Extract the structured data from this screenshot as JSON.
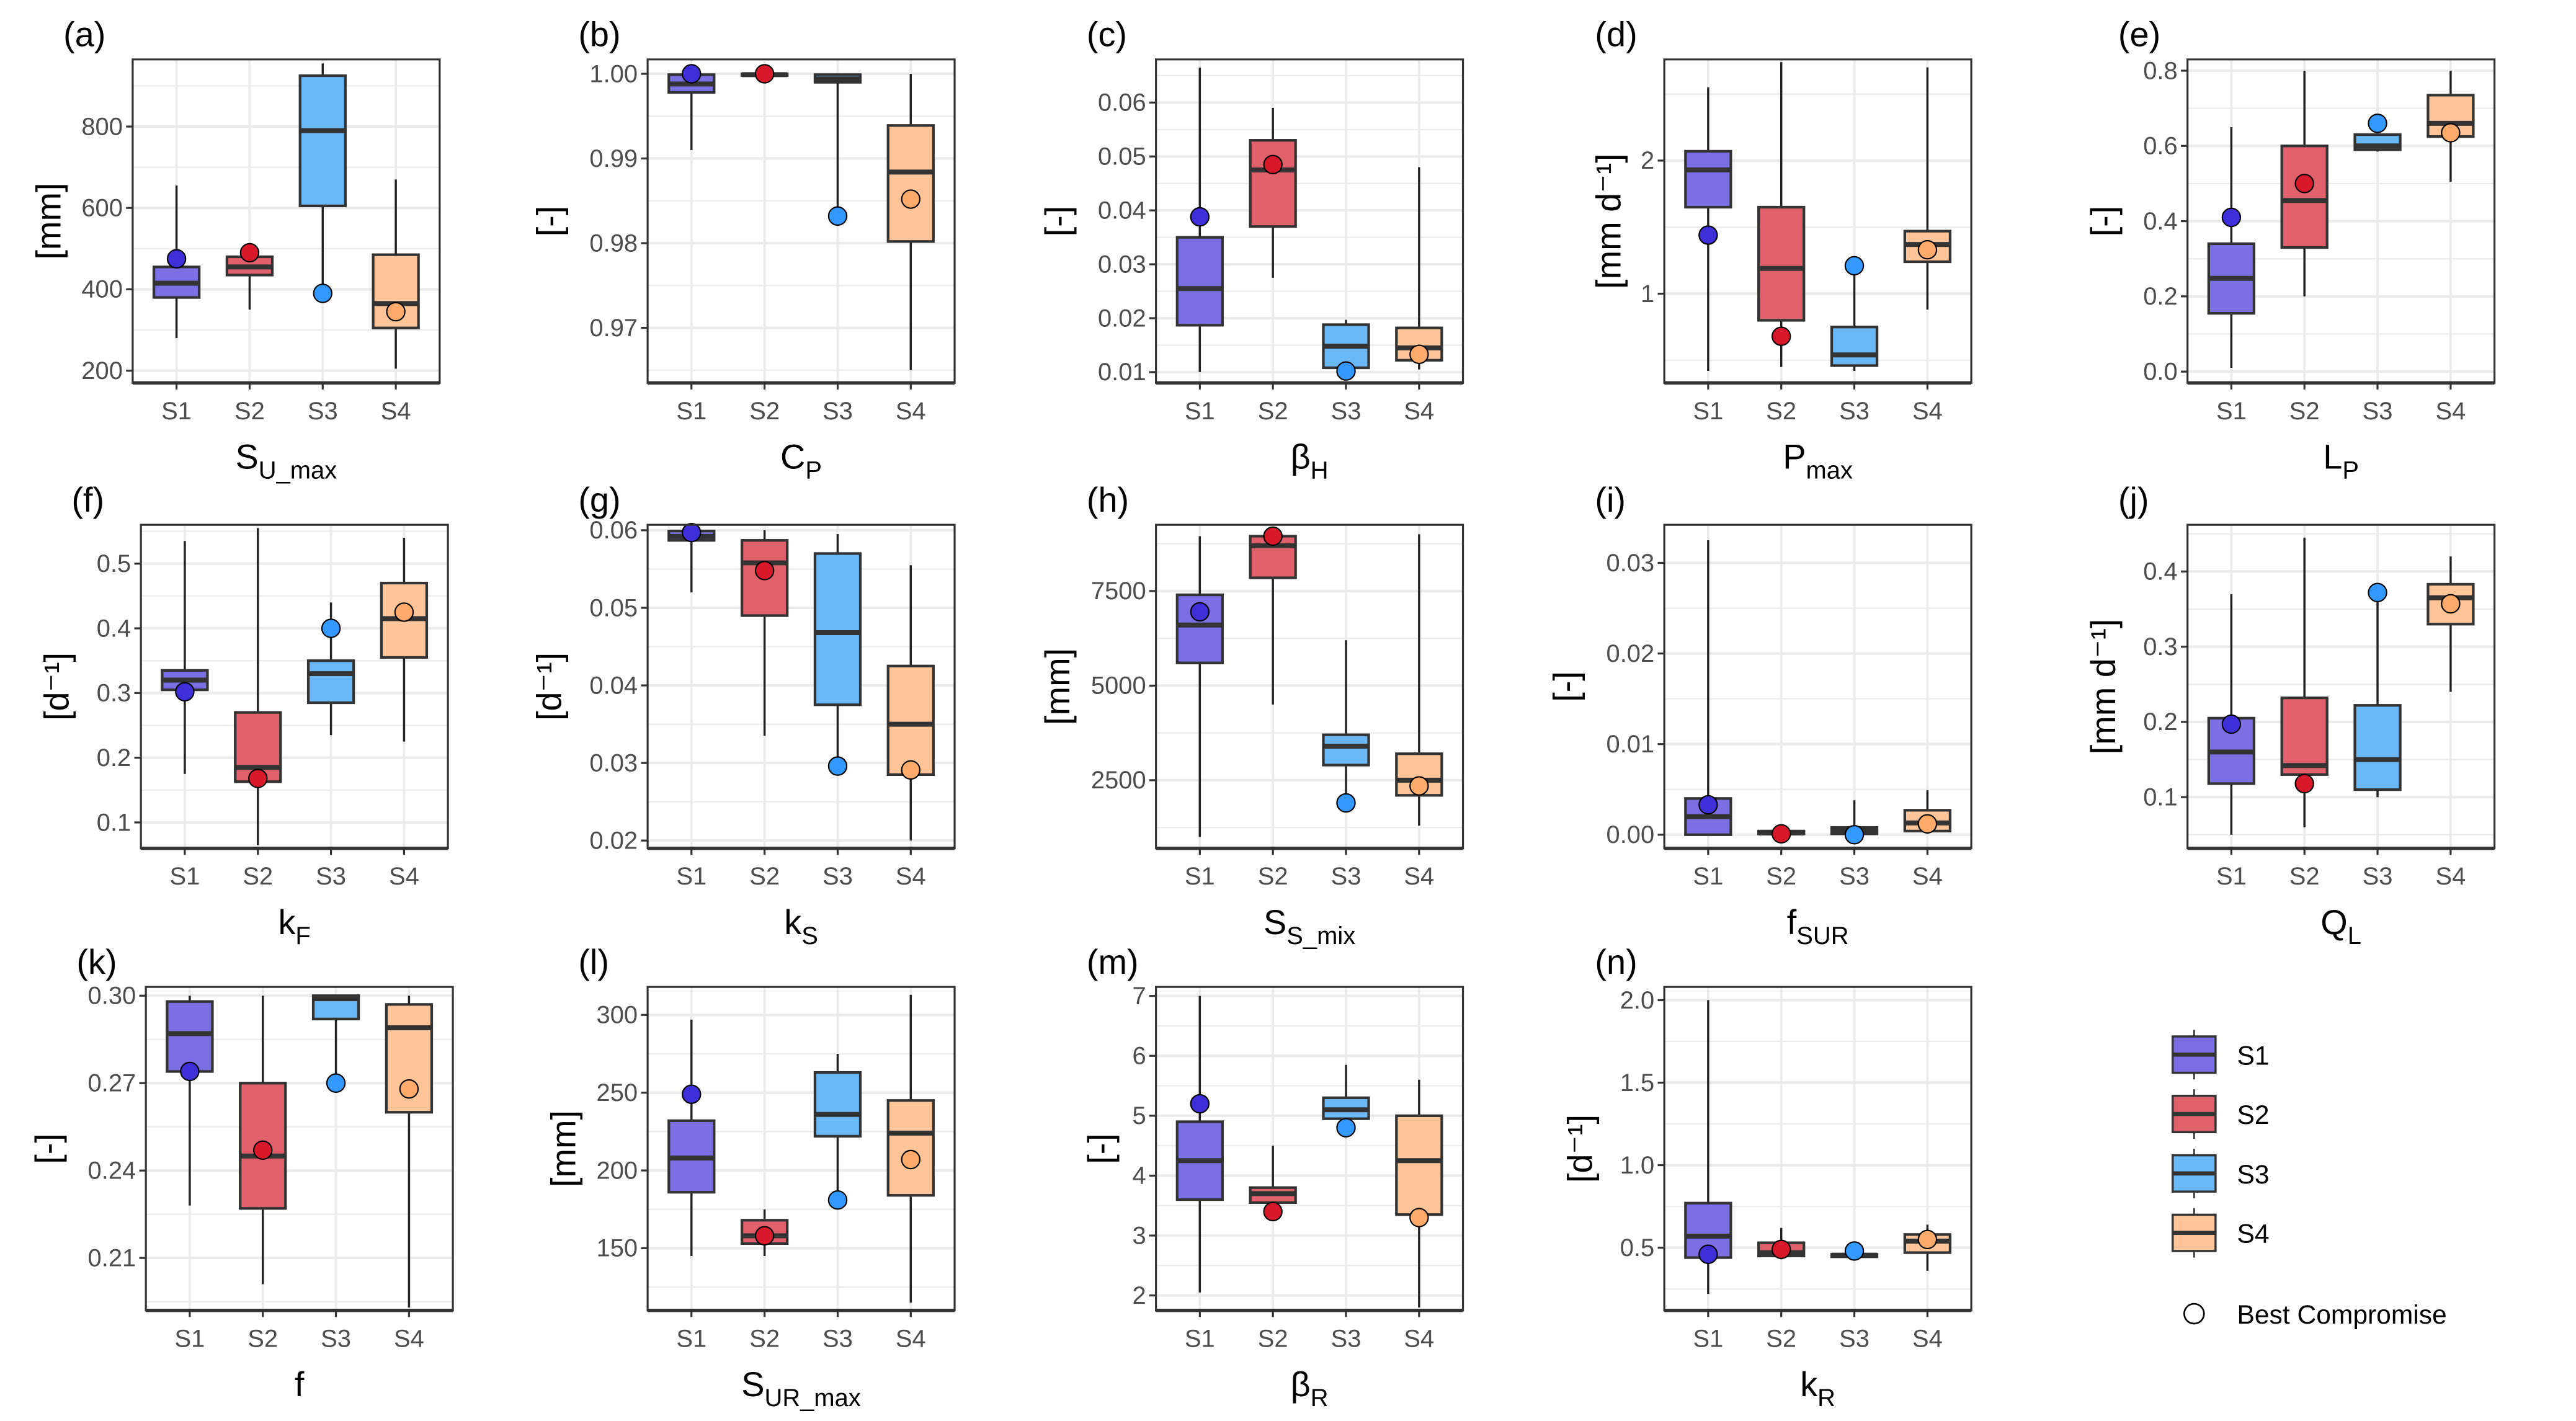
{
  "chart_data": {
    "type": "boxplot",
    "categories": [
      "S1",
      "S2",
      "S3",
      "S4"
    ],
    "colors": {
      "box": [
        "#7B6FE3",
        "#E0616B",
        "#6BB8F7",
        "#FFC599"
      ],
      "point": [
        "#3F2FD9",
        "#D7192B",
        "#3399FF",
        "#FDAA6B"
      ]
    },
    "legend": {
      "items": [
        "S1",
        "S2",
        "S3",
        "S4"
      ],
      "point_label": "Best Compromise",
      "placement": "right"
    },
    "value_order": [
      "lower_whisker",
      "q1",
      "median",
      "q3",
      "upper_whisker",
      "best_compromise"
    ],
    "panels": [
      {
        "label": "(a)",
        "xlabel": {
          "main": "S",
          "sub": "U_max"
        },
        "ylabel": "[mm]",
        "ylim": [
          170,
          965
        ],
        "ticks": [
          200,
          400,
          600,
          800
        ],
        "tick_labels": [
          "200",
          "400",
          "600",
          "800"
        ],
        "boxes": [
          [
            280,
            380,
            415,
            455,
            655,
            475
          ],
          [
            350,
            435,
            455,
            480,
            485,
            490
          ],
          [
            375,
            605,
            790,
            925,
            955,
            390
          ],
          [
            205,
            305,
            365,
            485,
            670,
            345
          ]
        ]
      },
      {
        "label": "(b)",
        "xlabel": {
          "main": "C",
          "sub": "P"
        },
        "ylabel": "[-]",
        "ylim": [
          0.9635,
          1.0017
        ],
        "ticks": [
          0.97,
          0.98,
          0.99,
          1.0
        ],
        "tick_labels": [
          "0.97",
          "0.98",
          "0.99",
          "1.00"
        ],
        "boxes": [
          [
            0.991,
            0.9978,
            0.9988,
            0.9999,
            1.0,
            1.0
          ],
          [
            0.9998,
            0.9998,
            0.9999,
            1.0,
            1.0,
            1.0
          ],
          [
            0.9832,
            0.999,
            0.9994,
            0.9999,
            1.0,
            0.9832
          ],
          [
            0.965,
            0.9802,
            0.9884,
            0.9939,
            1.0,
            0.9852
          ]
        ]
      },
      {
        "label": "(c)",
        "xlabel": {
          "main": "β",
          "sub": "H"
        },
        "ylabel": "[-]",
        "ylim": [
          0.008,
          0.068
        ],
        "ticks": [
          0.01,
          0.02,
          0.03,
          0.04,
          0.05,
          0.06
        ],
        "tick_labels": [
          "0.01",
          "0.02",
          "0.03",
          "0.04",
          "0.05",
          "0.06"
        ],
        "boxes": [
          [
            0.01,
            0.0187,
            0.0255,
            0.035,
            0.0665,
            0.0388
          ],
          [
            0.0275,
            0.037,
            0.0475,
            0.053,
            0.059,
            0.0485
          ],
          [
            0.0102,
            0.0108,
            0.0148,
            0.0188,
            0.0197,
            0.0102
          ],
          [
            0.0105,
            0.0122,
            0.0145,
            0.0182,
            0.048,
            0.0133
          ]
        ]
      },
      {
        "label": "(d)",
        "xlabel": {
          "main": "P",
          "sub": "max"
        },
        "ylabel": "[mm d⁻¹]",
        "ylim": [
          0.33,
          2.76
        ],
        "ticks": [
          1,
          2
        ],
        "tick_labels": [
          "1",
          "2"
        ],
        "boxes": [
          [
            0.42,
            1.65,
            1.93,
            2.07,
            2.55,
            1.44
          ],
          [
            0.45,
            0.8,
            1.19,
            1.65,
            2.74,
            0.68
          ],
          [
            0.42,
            0.46,
            0.54,
            0.75,
            1.21,
            1.21
          ],
          [
            0.88,
            1.24,
            1.37,
            1.47,
            2.7,
            1.33
          ]
        ]
      },
      {
        "label": "(e)",
        "xlabel": {
          "main": "L",
          "sub": "P"
        },
        "ylabel": "[-]",
        "ylim": [
          -0.03,
          0.83
        ],
        "ticks": [
          0,
          0.2,
          0.4,
          0.6,
          0.8
        ],
        "tick_labels": [
          "0.0",
          "0.2",
          "0.4",
          "0.6",
          "0.8"
        ],
        "boxes": [
          [
            0.01,
            0.155,
            0.248,
            0.34,
            0.65,
            0.41
          ],
          [
            0.2,
            0.33,
            0.455,
            0.6,
            0.8,
            0.5
          ],
          [
            0.585,
            0.59,
            0.6,
            0.63,
            0.63,
            0.66
          ],
          [
            0.505,
            0.625,
            0.66,
            0.735,
            0.8,
            0.635
          ]
        ]
      },
      {
        "label": "(f)",
        "xlabel": {
          "main": "k",
          "sub": "F"
        },
        "ylabel": "[d⁻¹]",
        "ylim": [
          0.06,
          0.56
        ],
        "ticks": [
          0.1,
          0.2,
          0.3,
          0.4,
          0.5
        ],
        "tick_labels": [
          "0.1",
          "0.2",
          "0.3",
          "0.4",
          "0.5"
        ],
        "boxes": [
          [
            0.175,
            0.305,
            0.32,
            0.335,
            0.535,
            0.302
          ],
          [
            0.065,
            0.163,
            0.185,
            0.27,
            0.555,
            0.168
          ],
          [
            0.235,
            0.285,
            0.33,
            0.35,
            0.44,
            0.4
          ],
          [
            0.225,
            0.355,
            0.415,
            0.47,
            0.54,
            0.425
          ]
        ]
      },
      {
        "label": "(g)",
        "xlabel": {
          "main": "k",
          "sub": "S"
        },
        "ylabel": "[d⁻¹]",
        "ylim": [
          0.019,
          0.0607
        ],
        "ticks": [
          0.02,
          0.03,
          0.04,
          0.05,
          0.06
        ],
        "tick_labels": [
          "0.02",
          "0.03",
          "0.04",
          "0.05",
          "0.06"
        ],
        "boxes": [
          [
            0.052,
            0.0587,
            0.0592,
            0.0599,
            0.06,
            0.0597
          ],
          [
            0.0335,
            0.049,
            0.0558,
            0.0587,
            0.06,
            0.0548
          ],
          [
            0.0295,
            0.0375,
            0.0468,
            0.057,
            0.0595,
            0.0296
          ],
          [
            0.02,
            0.0285,
            0.035,
            0.0425,
            0.0555,
            0.0291
          ]
        ]
      },
      {
        "label": "(h)",
        "xlabel": {
          "main": "S",
          "sub": "S_mix"
        },
        "ylabel": "[mm]",
        "ylim": [
          700,
          9250
        ],
        "ticks": [
          2500,
          5000,
          7500
        ],
        "tick_labels": [
          "2500",
          "5000",
          "7500"
        ],
        "boxes": [
          [
            1000,
            5600,
            6600,
            7400,
            8950,
            6950
          ],
          [
            4500,
            7850,
            8700,
            8950,
            9000,
            8950
          ],
          [
            2000,
            2900,
            3400,
            3700,
            6200,
            1900
          ],
          [
            1300,
            2100,
            2500,
            3200,
            9000,
            2350
          ]
        ]
      },
      {
        "label": "(i)",
        "xlabel": {
          "main": "f",
          "sub": "SUR"
        },
        "ylabel": "[-]",
        "ylim": [
          -0.0015,
          0.0342
        ],
        "ticks": [
          0,
          0.01,
          0.02,
          0.03
        ],
        "tick_labels": [
          "0.00",
          "0.01",
          "0.02",
          "0.03"
        ],
        "boxes": [
          [
            0,
            0,
            0.002,
            0.004,
            0.0325,
            0.0033
          ],
          [
            0,
            0.0001,
            0.0002,
            0.0004,
            0.0005,
            0.0001
          ],
          [
            0,
            0.0001,
            0.0005,
            0.0008,
            0.0038,
            0
          ],
          [
            0.0001,
            0.0004,
            0.0013,
            0.0027,
            0.0049,
            0.0012
          ]
        ]
      },
      {
        "label": "(j)",
        "xlabel": {
          "main": "Q",
          "sub": "L"
        },
        "ylabel": "[mm d⁻¹]",
        "ylim": [
          0.032,
          0.462
        ],
        "ticks": [
          0.1,
          0.2,
          0.3,
          0.4
        ],
        "tick_labels": [
          "0.1",
          "0.2",
          "0.3",
          "0.4"
        ],
        "boxes": [
          [
            0.05,
            0.118,
            0.16,
            0.205,
            0.37,
            0.197
          ],
          [
            0.06,
            0.13,
            0.142,
            0.232,
            0.445,
            0.118
          ],
          [
            0.1,
            0.11,
            0.15,
            0.222,
            0.37,
            0.372
          ],
          [
            0.24,
            0.33,
            0.365,
            0.383,
            0.42,
            0.357
          ]
        ]
      },
      {
        "label": "(k)",
        "xlabel": {
          "main": "f",
          "sub": ""
        },
        "ylabel": "[-]",
        "ylim": [
          0.192,
          0.303
        ],
        "ticks": [
          0.21,
          0.24,
          0.27,
          0.3
        ],
        "tick_labels": [
          "0.21",
          "0.24",
          "0.27",
          "0.30"
        ],
        "boxes": [
          [
            0.228,
            0.274,
            0.287,
            0.298,
            0.3,
            0.274
          ],
          [
            0.201,
            0.227,
            0.245,
            0.27,
            0.3,
            0.247
          ],
          [
            0.27,
            0.292,
            0.299,
            0.3,
            0.3,
            0.27
          ],
          [
            0.193,
            0.26,
            0.289,
            0.297,
            0.3,
            0.268
          ]
        ]
      },
      {
        "label": "(l)",
        "xlabel": {
          "main": "S",
          "sub": "UR_max"
        },
        "ylabel": "[mm]",
        "ylim": [
          110,
          318
        ],
        "ticks": [
          150,
          200,
          250,
          300
        ],
        "tick_labels": [
          "150",
          "200",
          "250",
          "300"
        ],
        "boxes": [
          [
            145,
            186,
            208,
            232,
            297,
            249
          ],
          [
            145,
            153,
            158,
            168,
            175,
            158
          ],
          [
            180,
            222,
            236,
            263,
            275,
            181
          ],
          [
            115,
            184,
            224,
            245,
            313,
            207
          ]
        ]
      },
      {
        "label": "(m)",
        "xlabel": {
          "main": "β",
          "sub": "R"
        },
        "ylabel": "[-]",
        "ylim": [
          1.75,
          7.15
        ],
        "ticks": [
          2,
          3,
          4,
          5,
          6,
          7
        ],
        "tick_labels": [
          "2",
          "3",
          "4",
          "5",
          "6",
          "7"
        ],
        "boxes": [
          [
            2.05,
            3.6,
            4.25,
            4.9,
            7.0,
            5.2
          ],
          [
            3.4,
            3.55,
            3.7,
            3.8,
            4.5,
            3.4
          ],
          [
            4.85,
            4.95,
            5.1,
            5.3,
            5.85,
            4.8
          ],
          [
            1.8,
            3.35,
            4.25,
            5.0,
            5.6,
            3.3
          ]
        ]
      },
      {
        "label": "(n)",
        "xlabel": {
          "main": "k",
          "sub": "R"
        },
        "ylabel": "[d⁻¹]",
        "ylim": [
          0.12,
          2.08
        ],
        "ticks": [
          0.5,
          1.0,
          1.5,
          2.0
        ],
        "tick_labels": [
          "0.5",
          "1.0",
          "1.5",
          "2.0"
        ],
        "boxes": [
          [
            0.22,
            0.44,
            0.57,
            0.77,
            2.0,
            0.46
          ],
          [
            0.43,
            0.45,
            0.47,
            0.53,
            0.62,
            0.49
          ],
          [
            0.44,
            0.445,
            0.455,
            0.46,
            0.48,
            0.48
          ],
          [
            0.36,
            0.47,
            0.54,
            0.58,
            0.64,
            0.55
          ]
        ]
      }
    ]
  }
}
